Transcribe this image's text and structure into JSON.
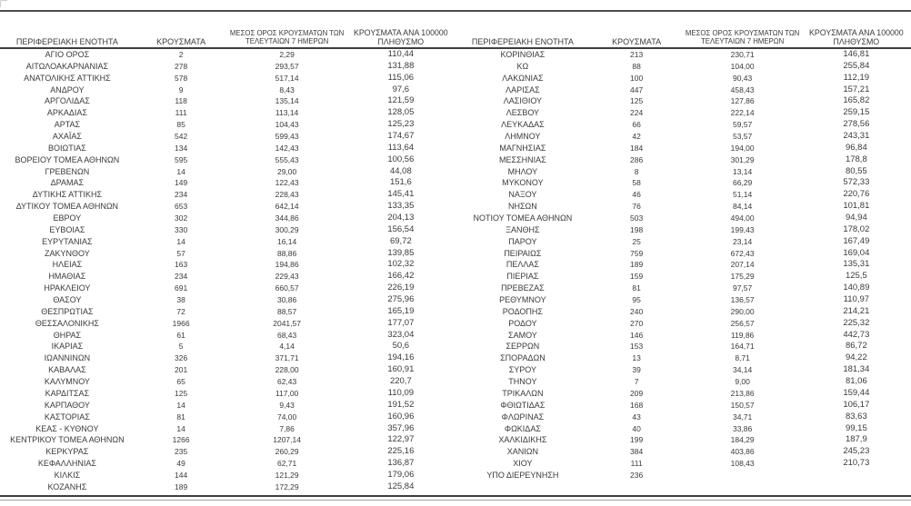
{
  "page": {
    "background": "#ffffff",
    "text_color": "#3a3a3a",
    "rule_dark_color": "#3d3d3d",
    "rule_gray_color": "#a0a0a0"
  },
  "columns": [
    "ΠΕΡΙΦΕΡΕΙΑΚΗ ΕΝΟΤΗΤΑ",
    "ΚΡΟΥΣΜΑΤΑ",
    "ΜΕΣΟΣ ΟΡΟΣ ΚΡΟΥΣΜΑΤΩΝ ΤΩΝ ΤΕΛΕΥΤΑΙΩΝ 7 ΗΜΕΡΩΝ",
    "ΚΡΟΥΣΜΑΤΑ ΑΝΑ 100000 ΠΛΗΘΥΣΜΟ"
  ],
  "left_table": {
    "rows": [
      [
        "ΑΓΙΟ ΟΡΟΣ",
        "2",
        "2,29",
        "110,44"
      ],
      [
        "ΑΙΤΩΛΟΑΚΑΡΝΑΝΙΑΣ",
        "278",
        "293,57",
        "131,88"
      ],
      [
        "ΑΝΑΤΟΛΙΚΗΣ ΑΤΤΙΚΗΣ",
        "578",
        "517,14",
        "115,06"
      ],
      [
        "ΑΝΔΡΟΥ",
        "9",
        "8,43",
        "97,6"
      ],
      [
        "ΑΡΓΟΛΙΔΑΣ",
        "118",
        "135,14",
        "121,59"
      ],
      [
        "ΑΡΚΑΔΙΑΣ",
        "111",
        "113,14",
        "128,05"
      ],
      [
        "ΑΡΤΑΣ",
        "85",
        "104,43",
        "125,23"
      ],
      [
        "ΑΧΑΪΑΣ",
        "542",
        "599,43",
        "174,67"
      ],
      [
        "ΒΟΙΩΤΙΑΣ",
        "134",
        "142,43",
        "113,64"
      ],
      [
        "ΒΟΡΕΙΟΥ ΤΟΜΕΑ ΑΘΗΝΩΝ",
        "595",
        "555,43",
        "100,56"
      ],
      [
        "ΓΡΕΒΕΝΩΝ",
        "14",
        "29,00",
        "44,08"
      ],
      [
        "ΔΡΑΜΑΣ",
        "149",
        "122,43",
        "151,6"
      ],
      [
        "ΔΥΤΙΚΗΣ ΑΤΤΙΚΗΣ",
        "234",
        "228,43",
        "145,41"
      ],
      [
        "ΔΥΤΙΚΟΥ ΤΟΜΕΑ ΑΘΗΝΩΝ",
        "653",
        "642,14",
        "133,35"
      ],
      [
        "ΕΒΡΟΥ",
        "302",
        "344,86",
        "204,13"
      ],
      [
        "ΕΥΒΟΙΑΣ",
        "330",
        "300,29",
        "156,54"
      ],
      [
        "ΕΥΡΥΤΑΝΙΑΣ",
        "14",
        "16,14",
        "69,72"
      ],
      [
        "ΖΑΚΥΝΘΟΥ",
        "57",
        "88,86",
        "139,85"
      ],
      [
        "ΗΛΕΙΑΣ",
        "163",
        "194,86",
        "102,32"
      ],
      [
        "ΗΜΑΘΙΑΣ",
        "234",
        "229,43",
        "166,42"
      ],
      [
        "ΗΡΑΚΛΕΙΟΥ",
        "691",
        "660,57",
        "226,19"
      ],
      [
        "ΘΑΣΟΥ",
        "38",
        "30,86",
        "275,96"
      ],
      [
        "ΘΕΣΠΡΩΤΙΑΣ",
        "72",
        "88,57",
        "165,19"
      ],
      [
        "ΘΕΣΣΑΛΟΝΙΚΗΣ",
        "1966",
        "2041,57",
        "177,07"
      ],
      [
        "ΘΗΡΑΣ",
        "61",
        "68,43",
        "323,04"
      ],
      [
        "ΙΚΑΡΙΑΣ",
        "5",
        "4,14",
        "50,6"
      ],
      [
        "ΙΩΑΝΝΙΝΩΝ",
        "326",
        "371,71",
        "194,16"
      ],
      [
        "ΚΑΒΑΛΑΣ",
        "201",
        "228,00",
        "160,91"
      ],
      [
        "ΚΑΛΥΜΝΟΥ",
        "65",
        "62,43",
        "220,7"
      ],
      [
        "ΚΑΡΔΙΤΣΑΣ",
        "125",
        "117,00",
        "110,09"
      ],
      [
        "ΚΑΡΠΑΘΟΥ",
        "14",
        "9,43",
        "191,52"
      ],
      [
        "ΚΑΣΤΟΡΙΑΣ",
        "81",
        "74,00",
        "160,96"
      ],
      [
        "ΚΕΑΣ - ΚΥΘΝΟΥ",
        "14",
        "7,86",
        "357,96"
      ],
      [
        "ΚΕΝΤΡΙΚΟΥ ΤΟΜΕΑ ΑΘΗΝΩΝ",
        "1266",
        "1207,14",
        "122,97"
      ],
      [
        "ΚΕΡΚΥΡΑΣ",
        "235",
        "260,29",
        "225,16"
      ],
      [
        "ΚΕΦΑΛΛΗΝΙΑΣ",
        "49",
        "62,71",
        "136,87"
      ],
      [
        "ΚΙΛΚΙΣ",
        "144",
        "121,29",
        "179,06"
      ],
      [
        "ΚΟΖΑΝΗΣ",
        "189",
        "172,29",
        "125,84"
      ]
    ]
  },
  "right_table": {
    "rows": [
      [
        "ΚΟΡΙΝΘΙΑΣ",
        "213",
        "230,71",
        "146,81"
      ],
      [
        "ΚΩ",
        "88",
        "104,00",
        "255,84"
      ],
      [
        "ΛΑΚΩΝΙΑΣ",
        "100",
        "90,43",
        "112,19"
      ],
      [
        "ΛΑΡΙΣΑΣ",
        "447",
        "458,43",
        "157,21"
      ],
      [
        "ΛΑΣΙΘΙΟΥ",
        "125",
        "127,86",
        "165,82"
      ],
      [
        "ΛΕΣΒΟΥ",
        "224",
        "222,14",
        "259,15"
      ],
      [
        "ΛΕΥΚΑΔΑΣ",
        "66",
        "59,57",
        "278,56"
      ],
      [
        "ΛΗΜΝΟΥ",
        "42",
        "53,57",
        "243,31"
      ],
      [
        "ΜΑΓΝΗΣΙΑΣ",
        "184",
        "194,00",
        "96,84"
      ],
      [
        "ΜΕΣΣΗΝΙΑΣ",
        "286",
        "301,29",
        "178,8"
      ],
      [
        "ΜΗΛΟΥ",
        "8",
        "13,14",
        "80,55"
      ],
      [
        "ΜΥΚΟΝΟΥ",
        "58",
        "66,29",
        "572,33"
      ],
      [
        "ΝΑΞΟΥ",
        "46",
        "51,14",
        "220,76"
      ],
      [
        "ΝΗΣΩΝ",
        "76",
        "84,14",
        "101,81"
      ],
      [
        "ΝΟΤΙΟΥ ΤΟΜΕΑ ΑΘΗΝΩΝ",
        "503",
        "494,00",
        "94,94"
      ],
      [
        "ΞΑΝΘΗΣ",
        "198",
        "199,43",
        "178,02"
      ],
      [
        "ΠΑΡΟΥ",
        "25",
        "23,14",
        "167,49"
      ],
      [
        "ΠΕΙΡΑΙΩΣ",
        "759",
        "672,43",
        "169,04"
      ],
      [
        "ΠΕΛΛΑΣ",
        "189",
        "207,14",
        "135,31"
      ],
      [
        "ΠΙΕΡΙΑΣ",
        "159",
        "175,29",
        "125,5"
      ],
      [
        "ΠΡΕΒΕΖΑΣ",
        "81",
        "97,57",
        "140,89"
      ],
      [
        "ΡΕΘΥΜΝΟΥ",
        "95",
        "136,57",
        "110,97"
      ],
      [
        "ΡΟΔΟΠΗΣ",
        "240",
        "290,00",
        "214,21"
      ],
      [
        "ΡΟΔΟΥ",
        "270",
        "256,57",
        "225,32"
      ],
      [
        "ΣΑΜΟΥ",
        "146",
        "119,86",
        "442,73"
      ],
      [
        "ΣΕΡΡΩΝ",
        "153",
        "164,71",
        "86,72"
      ],
      [
        "ΣΠΟΡΑΔΩΝ",
        "13",
        "8,71",
        "94,22"
      ],
      [
        "ΣΥΡΟΥ",
        "39",
        "34,14",
        "181,34"
      ],
      [
        "ΤΗΝΟΥ",
        "7",
        "9,00",
        "81,06"
      ],
      [
        "ΤΡΙΚΑΛΩΝ",
        "209",
        "213,86",
        "159,44"
      ],
      [
        "ΦΘΙΩΤΙΔΑΣ",
        "168",
        "150,57",
        "106,17"
      ],
      [
        "ΦΛΩΡΙΝΑΣ",
        "43",
        "34,71",
        "83,63"
      ],
      [
        "ΦΩΚΙΔΑΣ",
        "40",
        "33,86",
        "99,15"
      ],
      [
        "ΧΑΛΚΙΔΙΚΗΣ",
        "199",
        "184,29",
        "187,9"
      ],
      [
        "ΧΑΝΙΩΝ",
        "384",
        "403,86",
        "245,23"
      ],
      [
        "ΧΙΟΥ",
        "111",
        "108,43",
        "210,73"
      ],
      [
        "ΥΠΟ ΔΙΕΡΕΥΝΗΣΗ",
        "236",
        "",
        ""
      ]
    ]
  }
}
